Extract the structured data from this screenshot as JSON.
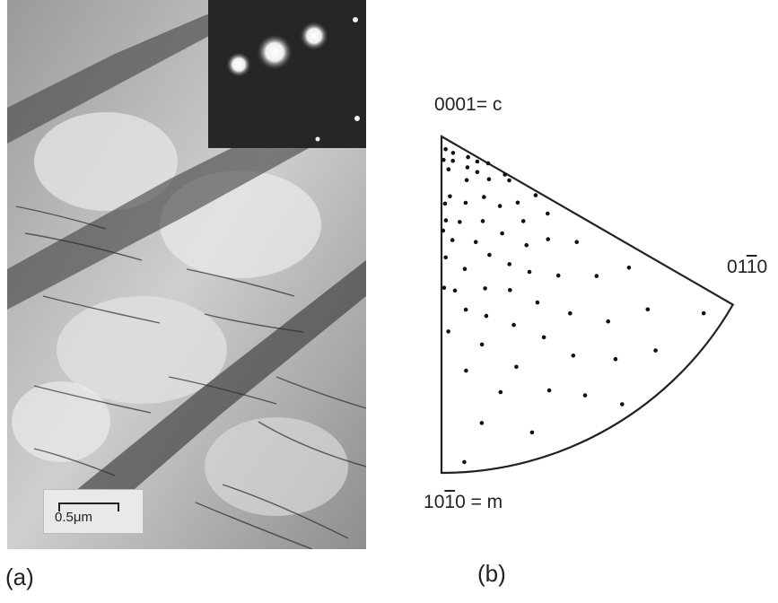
{
  "figure": {
    "panel_a": {
      "label": "(a)",
      "scale_bar": "0.5μm"
    },
    "panel_b": {
      "label": "(b)",
      "pole_c": {
        "indices": [
          "0",
          "0",
          "0",
          "1"
        ],
        "suffix": "= c",
        "barred_index": -1
      },
      "pole_m": {
        "indices": [
          "1",
          "0",
          "1",
          "0"
        ],
        "suffix": " = m",
        "barred_index": 2
      },
      "pole_a": {
        "indices": [
          "0",
          "1",
          "1",
          "0"
        ],
        "suffix": "",
        "barred_index": 2
      }
    }
  },
  "chart_data": {
    "type": "scatter",
    "title": "",
    "xlabel": "",
    "ylabel": "",
    "note": "inverse pole figure points, expressed as polar coordinates: r = fraction of triangle radius from 0001 pole, theta = angle in degrees from the 0001–10-10 edge toward 01-10",
    "points": [
      {
        "r": 0.04,
        "theta": 18
      },
      {
        "r": 0.07,
        "theta": 5
      },
      {
        "r": 0.08,
        "theta": 25
      },
      {
        "r": 0.1,
        "theta": 12
      },
      {
        "r": 0.12,
        "theta": 40
      },
      {
        "r": 0.13,
        "theta": 55
      },
      {
        "r": 0.15,
        "theta": 30
      },
      {
        "r": 0.16,
        "theta": 60
      },
      {
        "r": 0.18,
        "theta": 8
      },
      {
        "r": 0.19,
        "theta": 48
      },
      {
        "r": 0.21,
        "theta": 20
      },
      {
        "r": 0.22,
        "theta": 35
      },
      {
        "r": 0.24,
        "theta": 57
      },
      {
        "r": 0.25,
        "theta": 3
      },
      {
        "r": 0.26,
        "theta": 12
      },
      {
        "r": 0.27,
        "theta": 40
      },
      {
        "r": 0.28,
        "theta": 26
      },
      {
        "r": 0.3,
        "theta": 49
      },
      {
        "r": 0.31,
        "theta": 6
      },
      {
        "r": 0.33,
        "theta": 18
      },
      {
        "r": 0.34,
        "theta": 32
      },
      {
        "r": 0.35,
        "theta": 44
      },
      {
        "r": 0.36,
        "theta": 2
      },
      {
        "r": 0.38,
        "theta": 22
      },
      {
        "r": 0.39,
        "theta": 54
      },
      {
        "r": 0.4,
        "theta": 10
      },
      {
        "r": 0.41,
        "theta": 38
      },
      {
        "r": 0.43,
        "theta": 28
      },
      {
        "r": 0.44,
        "theta": 46
      },
      {
        "r": 0.46,
        "theta": 5
      },
      {
        "r": 0.47,
        "theta": 16
      },
      {
        "r": 0.48,
        "theta": 33
      },
      {
        "r": 0.5,
        "theta": 24
      },
      {
        "r": 0.51,
        "theta": 52
      },
      {
        "r": 0.52,
        "theta": 8
      },
      {
        "r": 0.54,
        "theta": 40
      },
      {
        "r": 0.55,
        "theta": 14
      },
      {
        "r": 0.57,
        "theta": 30
      },
      {
        "r": 0.58,
        "theta": 2
      },
      {
        "r": 0.6,
        "theta": 21
      },
      {
        "r": 0.62,
        "theta": 48
      },
      {
        "r": 0.63,
        "theta": 11
      },
      {
        "r": 0.65,
        "theta": 36
      },
      {
        "r": 0.67,
        "theta": 27
      },
      {
        "r": 0.68,
        "theta": 55
      },
      {
        "r": 0.7,
        "theta": 6
      },
      {
        "r": 0.72,
        "theta": 18
      },
      {
        "r": 0.74,
        "theta": 42
      },
      {
        "r": 0.76,
        "theta": 31
      },
      {
        "r": 0.78,
        "theta": 13
      },
      {
        "r": 0.8,
        "theta": 50
      },
      {
        "r": 0.82,
        "theta": 23
      },
      {
        "r": 0.84,
        "theta": 38
      },
      {
        "r": 0.86,
        "theta": 8
      },
      {
        "r": 0.88,
        "theta": 29
      },
      {
        "r": 0.9,
        "theta": 45
      },
      {
        "r": 0.92,
        "theta": 17
      },
      {
        "r": 0.94,
        "theta": 56
      },
      {
        "r": 0.96,
        "theta": 34
      },
      {
        "r": 0.97,
        "theta": 4
      },
      {
        "r": 0.2,
        "theta": 3
      },
      {
        "r": 0.28,
        "theta": 1
      },
      {
        "r": 0.45,
        "theta": 1
      },
      {
        "r": 0.33,
        "theta": 58
      },
      {
        "r": 0.22,
        "theta": 59
      },
      {
        "r": 0.15,
        "theta": 45
      },
      {
        "r": 0.1,
        "theta": 52
      },
      {
        "r": 0.06,
        "theta": 35
      }
    ]
  }
}
